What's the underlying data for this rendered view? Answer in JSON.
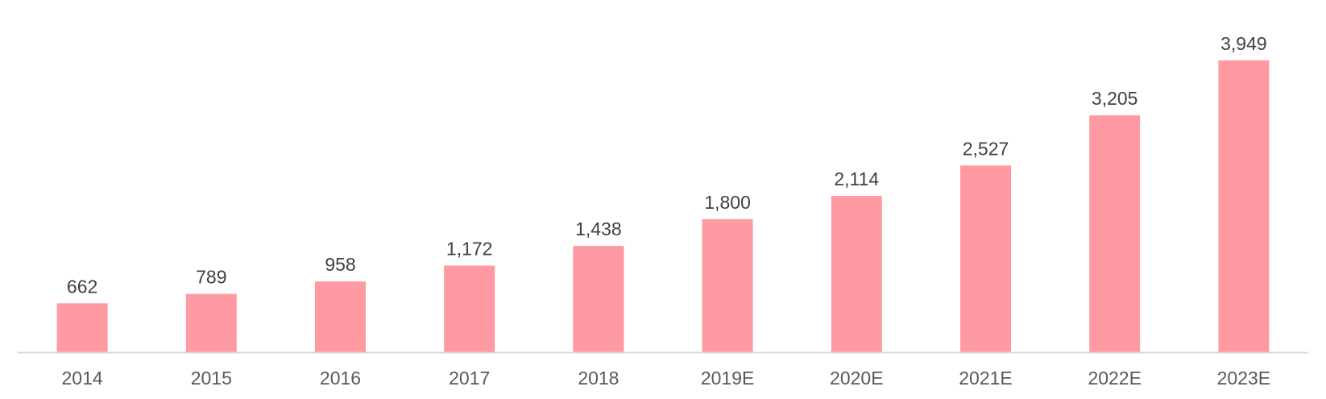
{
  "chart_data": {
    "type": "bar",
    "categories": [
      "2014",
      "2015",
      "2016",
      "2017",
      "2018",
      "2019E",
      "2020E",
      "2021E",
      "2022E",
      "2023E"
    ],
    "values": [
      662,
      789,
      958,
      1172,
      1438,
      1800,
      2114,
      2527,
      3205,
      3949
    ],
    "value_labels": [
      "662",
      "789",
      "958",
      "1,172",
      "1,438",
      "1,800",
      "2,114",
      "2,527",
      "3,205",
      "3,949"
    ],
    "title": "",
    "xlabel": "",
    "ylabel": "",
    "ylim": [
      0,
      4000
    ],
    "grid": false,
    "legend": "none",
    "bar_color": "#FF9AA2",
    "axis_color": "#D9D9D9"
  }
}
